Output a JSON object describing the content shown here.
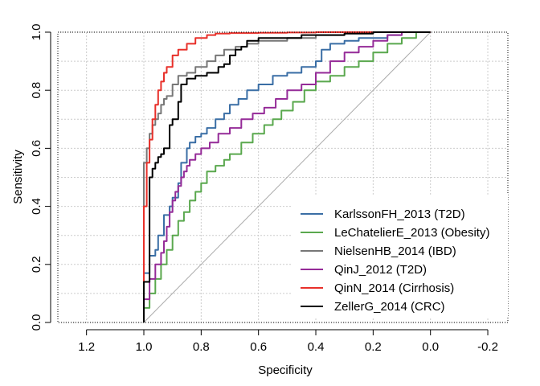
{
  "chart_data": {
    "type": "line",
    "title": "",
    "xlabel": "Specificity",
    "ylabel": "Sensitivity",
    "xlim": [
      1.3,
      -0.27
    ],
    "ylim": [
      0,
      1
    ],
    "x_reversed": true,
    "x_ticks": [
      "1.2",
      "1.0",
      "0.8",
      "0.6",
      "0.4",
      "0.2",
      "0.0",
      "-0.2"
    ],
    "y_ticks": [
      "0.0",
      "0.2",
      "0.4",
      "0.6",
      "0.8",
      "1.0"
    ],
    "grid": true,
    "legend_position": "bottom-right",
    "reference_line": {
      "x": [
        1,
        0
      ],
      "y": [
        0,
        1
      ],
      "color": "#aaaaaa"
    },
    "series": [
      {
        "name": "KarlssonFH_2013 (T2D)",
        "color": "#3a6ea5",
        "x": [
          1.0,
          1.0,
          0.98,
          0.96,
          0.95,
          0.93,
          0.91,
          0.9,
          0.88,
          0.87,
          0.85,
          0.84,
          0.82,
          0.8,
          0.78,
          0.75,
          0.72,
          0.7,
          0.67,
          0.64,
          0.6,
          0.55,
          0.5,
          0.45,
          0.4,
          0.38,
          0.35,
          0.3,
          0.25,
          0.15,
          0.1,
          0.0
        ],
        "y": [
          0.0,
          0.1,
          0.17,
          0.23,
          0.25,
          0.3,
          0.37,
          0.4,
          0.43,
          0.48,
          0.55,
          0.6,
          0.62,
          0.64,
          0.65,
          0.67,
          0.7,
          0.72,
          0.75,
          0.77,
          0.8,
          0.82,
          0.85,
          0.86,
          0.88,
          0.9,
          0.94,
          0.96,
          0.97,
          0.98,
          0.99,
          1.0
        ]
      },
      {
        "name": "LeChatelierE_2013 (Obesity)",
        "color": "#5aa84e",
        "x": [
          1.0,
          0.98,
          0.96,
          0.94,
          0.92,
          0.9,
          0.88,
          0.86,
          0.84,
          0.82,
          0.8,
          0.78,
          0.75,
          0.72,
          0.7,
          0.66,
          0.62,
          0.58,
          0.55,
          0.52,
          0.48,
          0.44,
          0.4,
          0.35,
          0.3,
          0.25,
          0.2,
          0.15,
          0.1,
          0.05,
          0.0
        ],
        "y": [
          0.0,
          0.05,
          0.1,
          0.15,
          0.2,
          0.25,
          0.3,
          0.35,
          0.38,
          0.42,
          0.45,
          0.48,
          0.52,
          0.54,
          0.56,
          0.58,
          0.62,
          0.65,
          0.68,
          0.7,
          0.73,
          0.76,
          0.8,
          0.83,
          0.85,
          0.88,
          0.9,
          0.93,
          0.96,
          0.98,
          1.0
        ]
      },
      {
        "name": "NielsenHB_2014 (IBD)",
        "color": "#777777",
        "x": [
          1.0,
          1.0,
          0.99,
          0.98,
          0.97,
          0.96,
          0.95,
          0.94,
          0.93,
          0.92,
          0.9,
          0.88,
          0.85,
          0.82,
          0.78,
          0.75,
          0.72,
          0.68,
          0.64,
          0.6,
          0.5,
          0.4,
          0.3,
          0.2,
          0.0
        ],
        "y": [
          0.0,
          0.4,
          0.55,
          0.6,
          0.65,
          0.68,
          0.7,
          0.72,
          0.75,
          0.77,
          0.78,
          0.82,
          0.85,
          0.86,
          0.88,
          0.9,
          0.92,
          0.94,
          0.95,
          0.96,
          0.97,
          0.98,
          0.99,
          0.995,
          1.0
        ]
      },
      {
        "name": "QinJ_2012 (T2D)",
        "color": "#952b98",
        "x": [
          1.0,
          0.98,
          0.96,
          0.94,
          0.93,
          0.92,
          0.91,
          0.9,
          0.89,
          0.88,
          0.87,
          0.86,
          0.85,
          0.84,
          0.82,
          0.8,
          0.77,
          0.74,
          0.7,
          0.66,
          0.62,
          0.58,
          0.54,
          0.5,
          0.45,
          0.4,
          0.35,
          0.3,
          0.25,
          0.2,
          0.15,
          0.1,
          0.0
        ],
        "y": [
          0.0,
          0.08,
          0.15,
          0.2,
          0.24,
          0.28,
          0.33,
          0.38,
          0.42,
          0.45,
          0.47,
          0.5,
          0.52,
          0.54,
          0.56,
          0.58,
          0.6,
          0.62,
          0.65,
          0.67,
          0.7,
          0.72,
          0.74,
          0.77,
          0.8,
          0.82,
          0.86,
          0.9,
          0.93,
          0.95,
          0.97,
          0.99,
          1.0
        ]
      },
      {
        "name": "QinN_2014 (Cirrhosis)",
        "color": "#e8302a",
        "x": [
          1.0,
          1.0,
          0.99,
          0.98,
          0.97,
          0.96,
          0.95,
          0.94,
          0.93,
          0.92,
          0.9,
          0.88,
          0.85,
          0.82,
          0.78,
          0.75,
          0.7,
          0.6,
          0.5,
          0.4,
          0.0
        ],
        "y": [
          0.0,
          0.1,
          0.4,
          0.55,
          0.63,
          0.7,
          0.75,
          0.8,
          0.83,
          0.86,
          0.88,
          0.92,
          0.94,
          0.96,
          0.98,
          0.99,
          0.995,
          0.997,
          0.998,
          0.999,
          1.0
        ]
      },
      {
        "name": "ZellerG_2014 (CRC)",
        "color": "#000000",
        "x": [
          1.0,
          1.0,
          0.98,
          0.97,
          0.96,
          0.95,
          0.94,
          0.93,
          0.91,
          0.9,
          0.88,
          0.87,
          0.85,
          0.82,
          0.78,
          0.74,
          0.72,
          0.7,
          0.68,
          0.66,
          0.64,
          0.62,
          0.6,
          0.55,
          0.45,
          0.3,
          0.2,
          0.0
        ],
        "y": [
          0.0,
          0.11,
          0.14,
          0.5,
          0.53,
          0.55,
          0.57,
          0.58,
          0.6,
          0.68,
          0.7,
          0.76,
          0.82,
          0.84,
          0.85,
          0.86,
          0.88,
          0.89,
          0.92,
          0.94,
          0.95,
          0.97,
          0.97,
          0.98,
          0.98,
          0.99,
          0.995,
          1.0
        ]
      }
    ]
  }
}
